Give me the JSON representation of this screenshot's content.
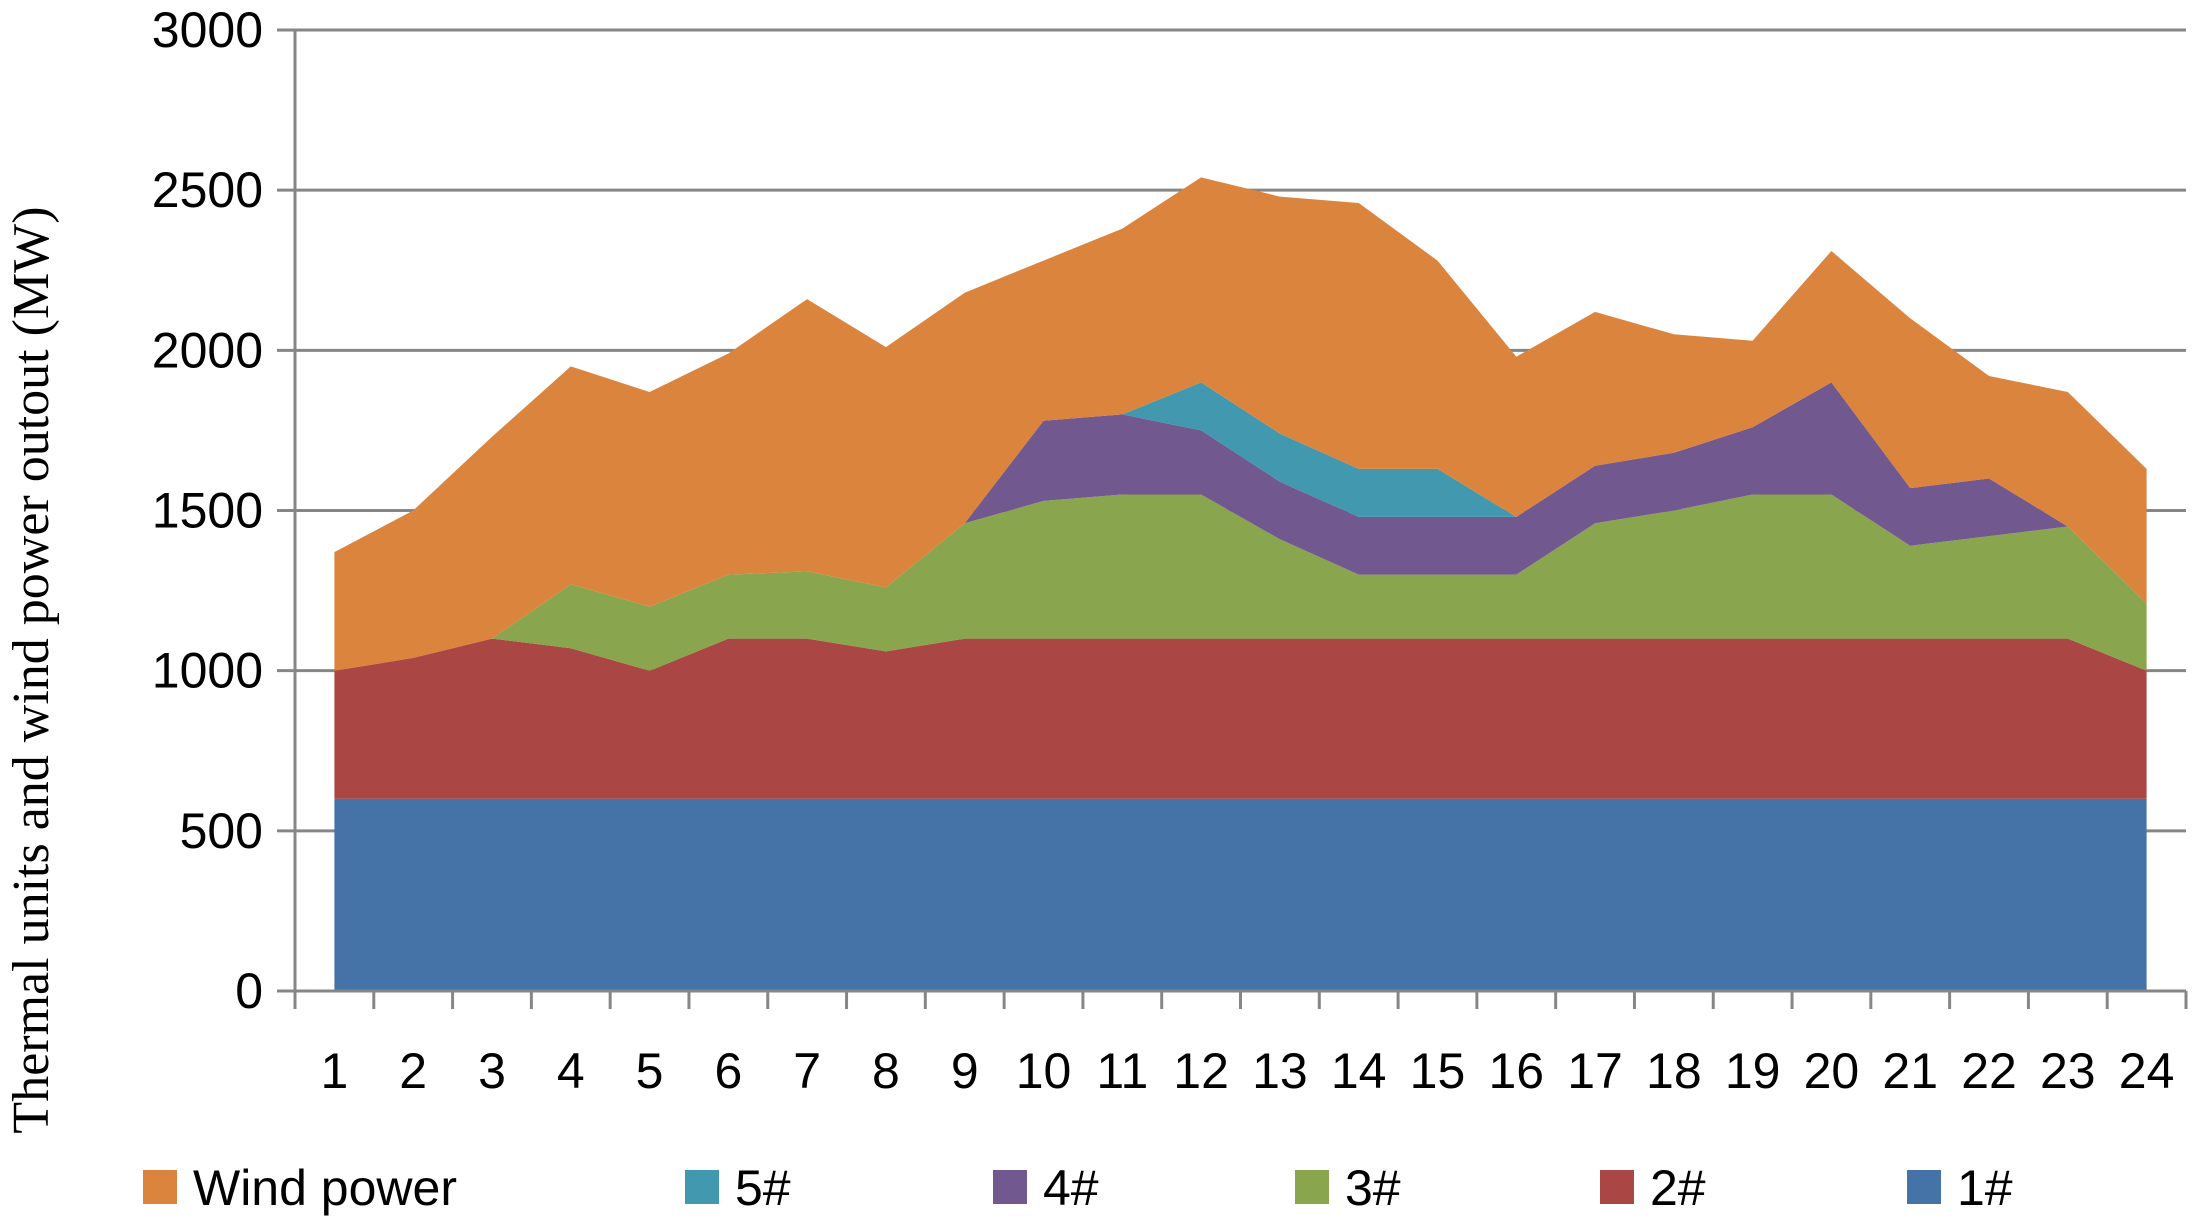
{
  "chart_data": {
    "type": "area",
    "stacked": true,
    "title": "",
    "xlabel": "",
    "ylabel": "Thermal units  and wind power  outout  (MW)",
    "ylim": [
      0,
      3000
    ],
    "yticks": [
      0,
      500,
      1000,
      1500,
      2000,
      2500,
      3000
    ],
    "grid": true,
    "legend_position": "bottom",
    "categories": [
      "1",
      "2",
      "3",
      "4",
      "5",
      "6",
      "7",
      "8",
      "9",
      "10",
      "11",
      "12",
      "13",
      "14",
      "15",
      "16",
      "17",
      "18",
      "19",
      "20",
      "21",
      "22",
      "23",
      "24"
    ],
    "series": [
      {
        "name": "1#",
        "color": "#4572A7",
        "values": [
          600,
          600,
          600,
          600,
          600,
          600,
          600,
          600,
          600,
          600,
          600,
          600,
          600,
          600,
          600,
          600,
          600,
          600,
          600,
          600,
          600,
          600,
          600,
          600
        ]
      },
      {
        "name": "2#",
        "color": "#AA4643",
        "values": [
          400,
          440,
          500,
          470,
          400,
          500,
          500,
          460,
          500,
          500,
          500,
          500,
          500,
          500,
          500,
          500,
          500,
          500,
          500,
          500,
          500,
          500,
          500,
          400
        ]
      },
      {
        "name": "3#",
        "color": "#89A54E",
        "values": [
          0,
          0,
          0,
          200,
          200,
          200,
          210,
          200,
          360,
          430,
          450,
          450,
          310,
          200,
          200,
          200,
          360,
          400,
          450,
          450,
          290,
          320,
          350,
          210
        ]
      },
      {
        "name": "4#",
        "color": "#71588F",
        "values": [
          0,
          0,
          0,
          0,
          0,
          0,
          0,
          0,
          0,
          250,
          250,
          200,
          180,
          180,
          180,
          180,
          180,
          180,
          210,
          350,
          180,
          180,
          0,
          0
        ]
      },
      {
        "name": "5#",
        "color": "#4198AF",
        "values": [
          0,
          0,
          0,
          0,
          0,
          0,
          0,
          0,
          0,
          0,
          0,
          150,
          150,
          150,
          150,
          0,
          0,
          0,
          0,
          0,
          0,
          0,
          0,
          0
        ]
      },
      {
        "name": "Wind power",
        "color": "#DB843D",
        "values": [
          370,
          460,
          630,
          680,
          670,
          690,
          850,
          750,
          720,
          500,
          580,
          640,
          740,
          830,
          650,
          500,
          480,
          370,
          270,
          410,
          530,
          320,
          420,
          420
        ]
      }
    ],
    "legend_order": [
      "Wind power",
      "5#",
      "4#",
      "3#",
      "2#",
      "1#"
    ]
  }
}
